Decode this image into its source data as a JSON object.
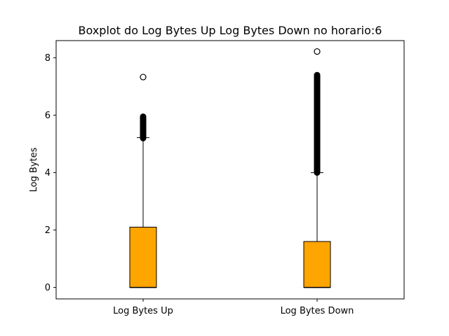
{
  "chart_data": {
    "type": "boxplot",
    "title": "Boxplot do Log Bytes Up  Log Bytes Down no horario:6",
    "xlabel": "",
    "ylabel": "Log Bytes",
    "ylim": [
      -0.4,
      8.6
    ],
    "yticks": [
      0,
      2,
      4,
      6,
      8
    ],
    "categories": [
      "Log Bytes Up",
      "Log Bytes Down"
    ],
    "box_color": "#FFA500",
    "edge_color": "#000000",
    "median_color": "#000000",
    "grid": false,
    "boxes": [
      {
        "label": "Log Bytes Up",
        "whisker_low": 0,
        "q1": 0,
        "median": 0,
        "q3": 2.1,
        "whisker_high": 5.22,
        "outlier_band": [
          5.2,
          5.95
        ],
        "outliers": [
          7.33
        ]
      },
      {
        "label": "Log Bytes Down",
        "whisker_low": 0,
        "q1": 0,
        "median": 0,
        "q3": 1.6,
        "whisker_high": 4.0,
        "outlier_band": [
          4.0,
          7.4
        ],
        "outliers": [
          8.22
        ]
      }
    ]
  }
}
